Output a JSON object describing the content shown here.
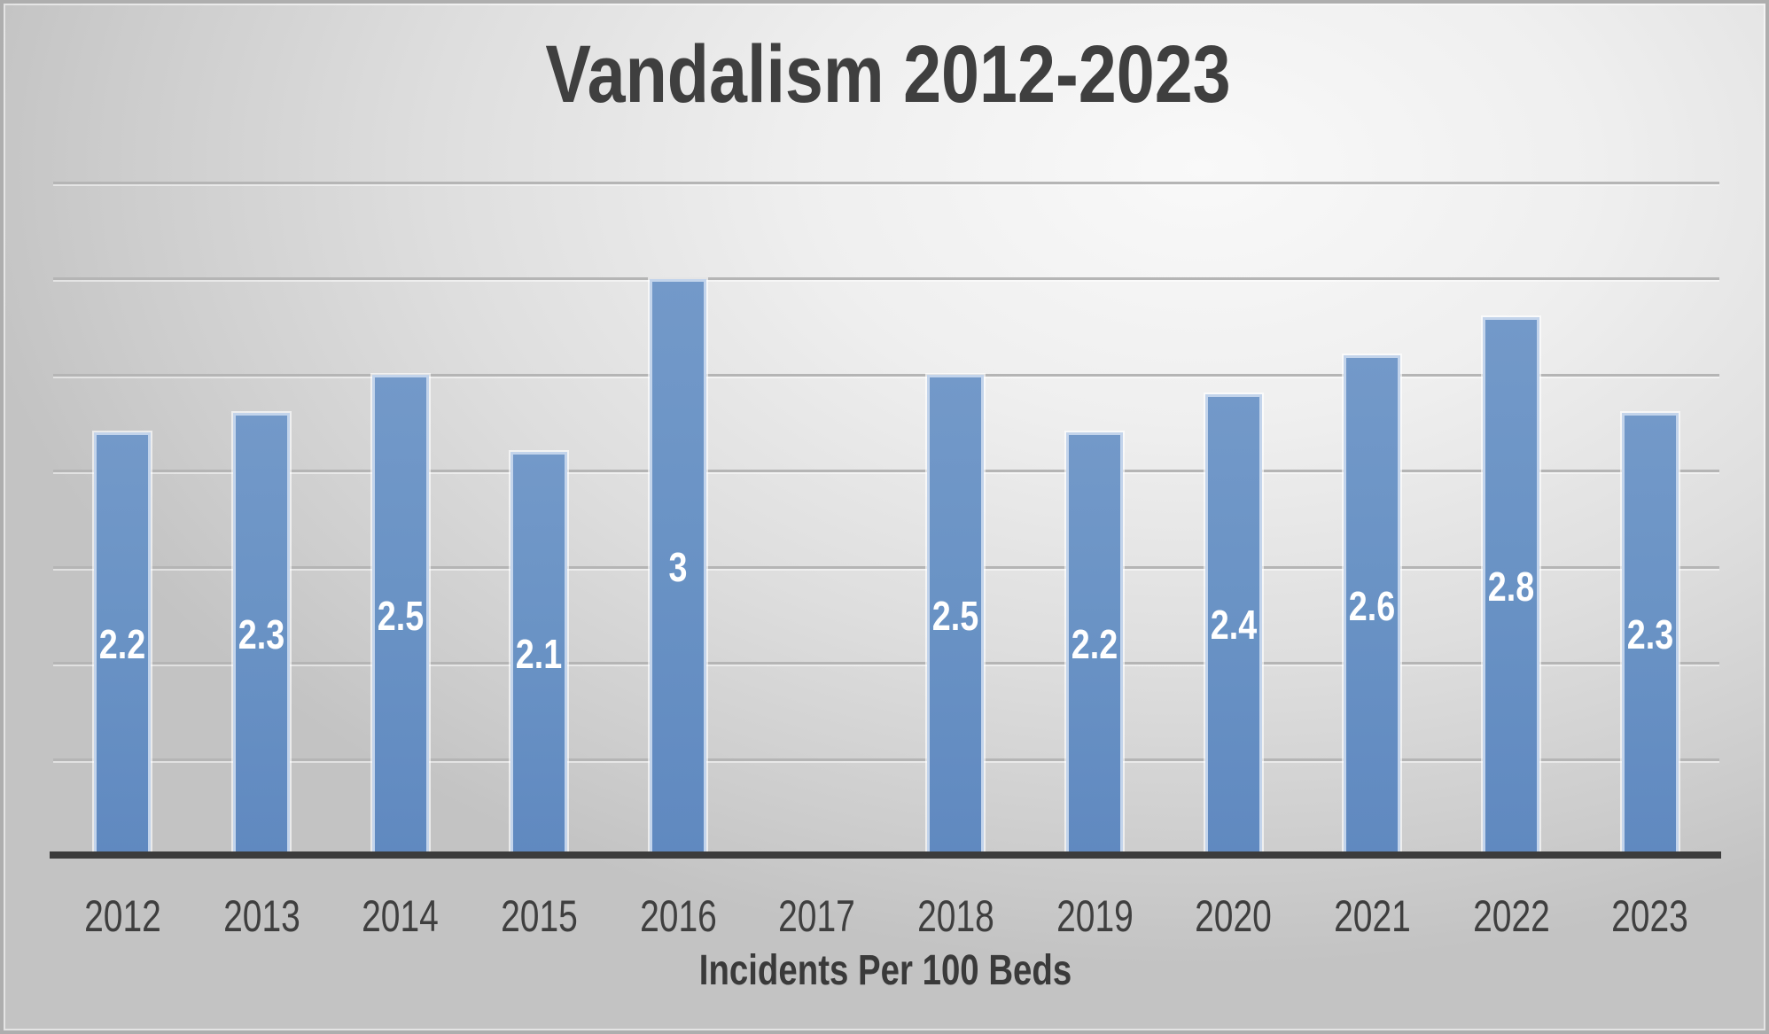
{
  "chart_data": {
    "type": "bar",
    "title": "Vandalism 2012-2023",
    "xlabel": "Incidents Per 100 Beds",
    "ylabel": "",
    "categories": [
      "2012",
      "2013",
      "2014",
      "2015",
      "2016",
      "2017",
      "2018",
      "2019",
      "2020",
      "2021",
      "2022",
      "2023"
    ],
    "values": [
      2.2,
      2.3,
      2.5,
      2.1,
      3,
      null,
      2.5,
      2.2,
      2.4,
      2.6,
      2.8,
      2.3
    ],
    "data_labels": [
      "2.2",
      "2.3",
      "2.5",
      "2.1",
      "3",
      null,
      "2.5",
      "2.2",
      "2.4",
      "2.6",
      "2.8",
      "2.3"
    ],
    "ylim": [
      0,
      3.5
    ],
    "gridline_step": 0.5,
    "gridline_values": [
      0.5,
      1.0,
      1.5,
      2.0,
      2.5,
      3.0,
      3.5
    ],
    "grid_on": true,
    "legend": "none",
    "colors": {
      "bar_fill": "#6a93c5",
      "bar_border": "#c3d4eb",
      "data_label": "#ffffff",
      "axis_line": "#3c3c3c",
      "text": "#3f3f3f",
      "gridline": "#b5b5b5",
      "background_light": "#f9f9f9",
      "background_dark": "#c3c3c3"
    }
  }
}
